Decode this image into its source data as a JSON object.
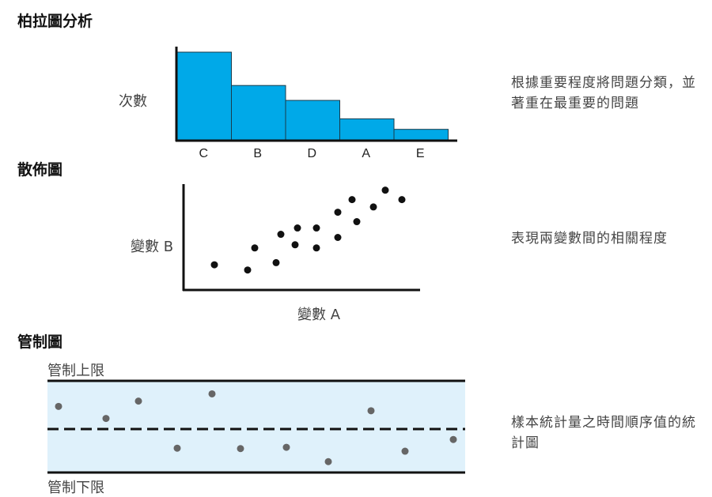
{
  "sections": {
    "pareto": {
      "title": "柏拉圖分析",
      "ylabel": "次數",
      "description": "根據重要程度將問題分類，並著重在最重要的問題"
    },
    "scatter": {
      "title": "散佈圖",
      "xlabel": "變數 A",
      "ylabel": "變數 B",
      "description": "表現兩變數間的相關程度"
    },
    "control": {
      "title": "管制圖",
      "upper_label": "管制上限",
      "lower_label": "管制下限",
      "description": "樣本統計量之時間順序值的統計圖"
    }
  },
  "chart_data": [
    {
      "type": "bar",
      "categories": [
        "C",
        "B",
        "D",
        "A",
        "E"
      ],
      "values": [
        100,
        62,
        45,
        24,
        12
      ],
      "ylim": [
        0,
        100
      ],
      "color": "#00a9e8",
      "xlabel": "",
      "ylabel": "次數"
    },
    {
      "type": "scatter",
      "xlabel": "變數 A",
      "ylabel": "變數 B",
      "xlim": [
        0,
        10
      ],
      "ylim": [
        0,
        10
      ],
      "points": [
        [
          1.3,
          2.4
        ],
        [
          2.7,
          1.9
        ],
        [
          3.0,
          4.0
        ],
        [
          3.9,
          2.6
        ],
        [
          4.1,
          5.3
        ],
        [
          4.8,
          5.9
        ],
        [
          4.7,
          4.3
        ],
        [
          5.6,
          5.9
        ],
        [
          5.6,
          4.0
        ],
        [
          6.5,
          7.4
        ],
        [
          6.5,
          5.0
        ],
        [
          7.1,
          8.6
        ],
        [
          7.3,
          6.5
        ],
        [
          8.0,
          7.9
        ],
        [
          8.5,
          9.5
        ],
        [
          9.2,
          8.6
        ]
      ],
      "color": "#111111"
    },
    {
      "type": "line",
      "upper_limit": 1,
      "lower_limit": -1,
      "center": 0,
      "values": [
        0.47,
        0.22,
        0.58,
        -0.44,
        0.73,
        -0.45,
        -0.42,
        -0.75,
        0.38,
        -0.51,
        -0.24
      ],
      "x": [
        1,
        2,
        3,
        4,
        5,
        6,
        7,
        8,
        9,
        10,
        11
      ],
      "band_color": "#dff1fb",
      "point_color": "#666666",
      "upper_label": "管制上限",
      "lower_label": "管制下限"
    }
  ]
}
